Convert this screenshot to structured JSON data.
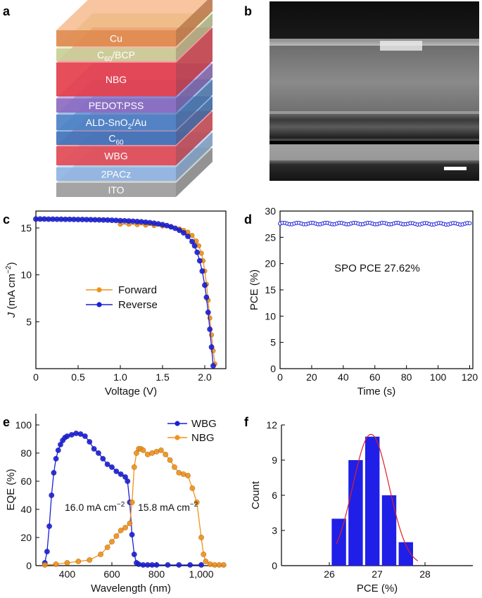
{
  "panels": {
    "a": "a",
    "b": "b",
    "c": "c",
    "d": "d",
    "e": "e",
    "f": "f"
  },
  "stack": {
    "layers": [
      {
        "key": "cu",
        "label": "Cu",
        "color": "#e08a4e"
      },
      {
        "key": "c60bcp",
        "label": "C",
        "sub": "60",
        "tail": "/BCP",
        "color": "#c9cf98"
      },
      {
        "key": "nbg",
        "label": "NBG",
        "color": "#e43f4c"
      },
      {
        "key": "pedot",
        "label": "PEDOT:PSS",
        "color": "#8c6bc1"
      },
      {
        "key": "ald",
        "label": "ALD-SnO",
        "sub": "2",
        "tail": "/Au",
        "color": "#4d82c6"
      },
      {
        "key": "c60",
        "label": "C",
        "sub": "60",
        "tail": "",
        "color": "#3e73bb"
      },
      {
        "key": "wbg",
        "label": "WBG",
        "color": "#e24a55"
      },
      {
        "key": "pacz",
        "label": "2PACz",
        "color": "#8fb4e3"
      },
      {
        "key": "ito",
        "label": "ITO",
        "color": "#9c9c9c"
      }
    ]
  },
  "sem": {
    "scale_bar": "scale-bar"
  },
  "chart_data": [
    {
      "panel": "c",
      "type": "line",
      "xlabel": "Voltage (V)",
      "ylabel": "J (mA cm⁻²)",
      "ylabel_parts": {
        "sym": "J",
        "unit": " (mA cm",
        "sup": "−2",
        "close": ")"
      },
      "xlim": [
        0,
        2.25
      ],
      "ylim": [
        0,
        16.8
      ],
      "xticks": [
        0,
        0.5,
        1.0,
        1.5,
        2.0
      ],
      "xtick_labels": [
        "0",
        "0.5",
        "1.0",
        "1.5",
        "2.0"
      ],
      "yticks": [
        5,
        10,
        15
      ],
      "ytick_labels": [
        "5",
        "10",
        "15"
      ],
      "legend": {
        "placement": "center-left"
      },
      "series": [
        {
          "name": "Forward",
          "color": "#f0921b",
          "x": [
            1.0,
            1.1,
            1.2,
            1.3,
            1.4,
            1.5,
            1.6,
            1.7,
            1.75,
            1.8,
            1.85,
            1.9,
            1.93,
            1.96,
            1.98,
            2.0,
            2.02,
            2.04,
            2.06,
            2.08,
            2.1,
            2.12
          ],
          "y": [
            15.4,
            15.4,
            15.35,
            15.3,
            15.25,
            15.2,
            15.1,
            14.9,
            14.75,
            14.55,
            14.2,
            13.6,
            13.1,
            12.3,
            11.5,
            10.4,
            9.0,
            7.3,
            5.4,
            3.6,
            1.9,
            0.5
          ]
        },
        {
          "name": "Reverse",
          "color": "#1b1fd6",
          "x": [
            0,
            0.05,
            0.1,
            0.15,
            0.2,
            0.25,
            0.3,
            0.35,
            0.4,
            0.45,
            0.5,
            0.55,
            0.6,
            0.65,
            0.7,
            0.75,
            0.8,
            0.85,
            0.9,
            0.95,
            1.0,
            1.05,
            1.1,
            1.15,
            1.2,
            1.25,
            1.3,
            1.35,
            1.4,
            1.45,
            1.5,
            1.55,
            1.6,
            1.65,
            1.7,
            1.75,
            1.8,
            1.85,
            1.88,
            1.91,
            1.94,
            1.97,
            2.0,
            2.02,
            2.04,
            2.06,
            2.08,
            2.1
          ],
          "y": [
            15.95,
            15.95,
            15.95,
            15.94,
            15.94,
            15.93,
            15.93,
            15.92,
            15.92,
            15.91,
            15.9,
            15.9,
            15.89,
            15.88,
            15.87,
            15.86,
            15.85,
            15.84,
            15.82,
            15.8,
            15.78,
            15.76,
            15.74,
            15.71,
            15.68,
            15.65,
            15.61,
            15.56,
            15.5,
            15.43,
            15.35,
            15.25,
            15.12,
            14.96,
            14.75,
            14.48,
            14.1,
            13.55,
            13.1,
            12.4,
            11.5,
            10.4,
            8.9,
            7.6,
            6.0,
            4.2,
            2.3,
            0.3
          ]
        }
      ]
    },
    {
      "panel": "d",
      "type": "line",
      "xlabel": "Time (s)",
      "ylabel": "PCE (%)",
      "xlim": [
        0,
        122
      ],
      "ylim": [
        0,
        30
      ],
      "xticks": [
        0,
        20,
        40,
        60,
        80,
        100,
        120
      ],
      "xtick_labels": [
        "0",
        "20",
        "40",
        "60",
        "80",
        "100",
        "120"
      ],
      "yticks": [
        0,
        5,
        10,
        15,
        20,
        25,
        30
      ],
      "ytick_labels": [
        "0",
        "5",
        "10",
        "15",
        "20",
        "25",
        "30"
      ],
      "annotation": "SPO PCE 27.62%",
      "series": [
        {
          "name": "SPO",
          "color": "#1b1fd6",
          "x_start": 0,
          "x_end": 120,
          "x_step": 1.5,
          "mean": 27.62,
          "values_note": "steady ~27.6"
        }
      ]
    },
    {
      "panel": "e",
      "type": "line",
      "xlabel": "Wavelength (nm)",
      "ylabel": "EQE (%)",
      "xlim": [
        260,
        1110
      ],
      "ylim": [
        0,
        108
      ],
      "xticks": [
        400,
        600,
        800,
        1000
      ],
      "xtick_labels": [
        "400",
        "600",
        "800",
        "1,000"
      ],
      "yticks": [
        0,
        20,
        40,
        60,
        80,
        100
      ],
      "ytick_labels": [
        "0",
        "20",
        "40",
        "60",
        "80",
        "100"
      ],
      "legend": {
        "placement": "top-right"
      },
      "annotations": [
        {
          "value": "16.0",
          "unit": " mA cm",
          "sup": "−2"
        },
        {
          "value": "15.8",
          "unit": " mA cm",
          "sup": "−2"
        }
      ],
      "series": [
        {
          "name": "WBG",
          "color": "#1b1fd6",
          "x": [
            300,
            310,
            320,
            330,
            340,
            350,
            360,
            370,
            380,
            390,
            400,
            420,
            440,
            460,
            480,
            500,
            520,
            540,
            560,
            580,
            600,
            620,
            640,
            660,
            670,
            680,
            690,
            700,
            710,
            720,
            740,
            760,
            780,
            800,
            850,
            900,
            950,
            1000
          ],
          "y": [
            2,
            10,
            28,
            50,
            66,
            76,
            82,
            86,
            89,
            91,
            92,
            93,
            94,
            93.5,
            92,
            88,
            83,
            80,
            76,
            72,
            70,
            67,
            65,
            63,
            60,
            45,
            22,
            8,
            2,
            1,
            0.5,
            0.5,
            0.5,
            0.5,
            0.5,
            0.5,
            0.5,
            0.5
          ]
        },
        {
          "name": "NBG",
          "color": "#f0921b",
          "x": [
            300,
            350,
            400,
            450,
            500,
            550,
            580,
            600,
            620,
            640,
            660,
            680,
            690,
            700,
            710,
            720,
            730,
            740,
            760,
            780,
            800,
            820,
            840,
            860,
            880,
            900,
            920,
            940,
            960,
            980,
            1000,
            1010,
            1020,
            1040,
            1060,
            1080,
            1100
          ],
          "y": [
            0.5,
            1,
            2,
            3,
            4,
            8,
            13,
            17,
            21,
            25,
            27,
            30,
            45,
            70,
            80,
            83,
            83,
            82,
            79,
            80,
            81,
            82,
            79,
            75,
            70,
            66,
            65,
            64,
            55,
            45,
            20,
            8,
            3,
            1,
            0.5,
            0.5,
            0.5
          ]
        }
      ]
    },
    {
      "panel": "f",
      "type": "bar",
      "xlabel": "PCE (%)",
      "ylabel": "Count",
      "xlim": [
        25,
        29
      ],
      "ylim": [
        0,
        12
      ],
      "xticks": [
        26,
        27,
        28
      ],
      "xtick_labels": [
        "26",
        "27",
        "28"
      ],
      "yticks": [
        0,
        3,
        6,
        9,
        12
      ],
      "ytick_labels": [
        "0",
        "3",
        "6",
        "9",
        "12"
      ],
      "bins": [
        {
          "start": 26.05,
          "end": 26.35,
          "count": 4
        },
        {
          "start": 26.4,
          "end": 26.7,
          "count": 9
        },
        {
          "start": 26.75,
          "end": 27.05,
          "count": 11
        },
        {
          "start": 27.1,
          "end": 27.4,
          "count": 6
        },
        {
          "start": 27.45,
          "end": 27.75,
          "count": 2
        }
      ],
      "bar_color": "#1f1fe8",
      "fit": {
        "type": "gaussian",
        "mean": 26.87,
        "sigma": 0.38,
        "peak": 11.2,
        "color": "#e02020"
      }
    }
  ]
}
